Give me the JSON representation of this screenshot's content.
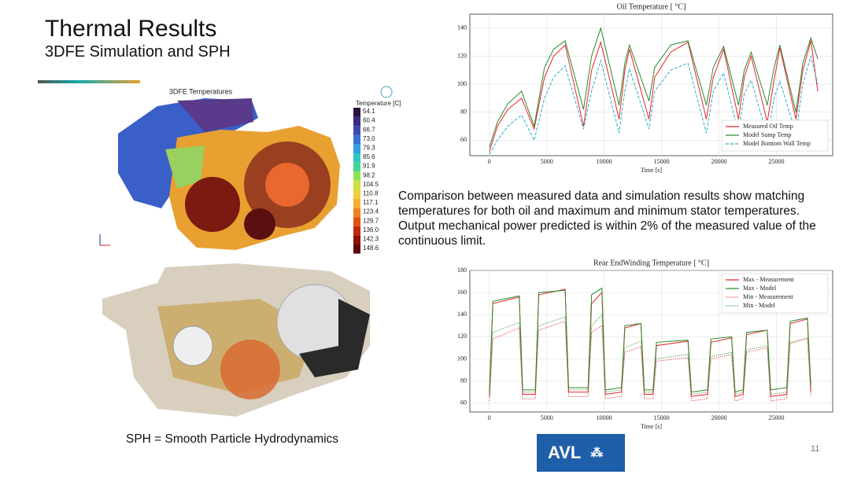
{
  "header": {
    "title": "Thermal Results",
    "subtitle": "3DFE Simulation and SPH"
  },
  "fe_panel": {
    "title": "3DFE Temperatures",
    "legend_title": "Temperature [C]",
    "legend_ticks": [
      "54.1",
      "60.4",
      "66.7",
      "73.0",
      "79.3",
      "85.6",
      "91.9",
      "98.2",
      "104.5",
      "110.8",
      "117.1",
      "123.4",
      "129.7",
      "136.0",
      "142.3",
      "148.6"
    ],
    "colors": [
      "#2a1040",
      "#3a2a80",
      "#3a4ab0",
      "#3a70d0",
      "#30a0e0",
      "#30c8c0",
      "#40d890",
      "#90e050",
      "#d0e040",
      "#f0d040",
      "#f8b030",
      "#f08020",
      "#e05010",
      "#c02808",
      "#901008",
      "#600808"
    ]
  },
  "description": "Comparison between measured data and simulation results show matching temperatures for both oil and maximum and minimum stator temperatures. Output mechanical power predicted is within 2% of the measured value of the continuous limit.",
  "sph_caption": "SPH = Smooth Particle Hydrodynamics",
  "logo": "AVL",
  "page_number": "11",
  "chart_data": [
    {
      "type": "line",
      "title": "Oil Temperature [ °C]",
      "x_label": "Time [s]",
      "x": [
        0,
        700,
        1600,
        2800,
        3900,
        4800,
        5600,
        6600,
        8200,
        8900,
        9700,
        11300,
        11800,
        12200,
        13900,
        14400,
        15800,
        17300,
        18900,
        19500,
        20400,
        21700,
        22200,
        22800,
        24200,
        24800,
        25300,
        26700,
        27300,
        28000,
        28600
      ],
      "series": [
        {
          "name": "Measured Oil Temp",
          "color": "#e8242c",
          "style": "solid",
          "values": [
            52,
            70,
            82,
            90,
            68,
            105,
            120,
            128,
            70,
            110,
            130,
            75,
            110,
            125,
            75,
            105,
            123,
            130,
            75,
            105,
            125,
            75,
            105,
            120,
            73,
            103,
            126,
            75,
            110,
            131,
            95
          ]
        },
        {
          "name": "Model Sump Temp",
          "color": "#2a8a2a",
          "style": "solid",
          "values": [
            55,
            73,
            86,
            95,
            70,
            112,
            125,
            131,
            82,
            120,
            140,
            85,
            115,
            128,
            88,
            112,
            128,
            131,
            85,
            112,
            127,
            85,
            110,
            123,
            85,
            112,
            128,
            80,
            115,
            133,
            118
          ]
        },
        {
          "name": "Model Botttom Wall Temp",
          "color": "#2ab0c8",
          "style": "dashed",
          "values": [
            50,
            60,
            70,
            78,
            60,
            90,
            105,
            113,
            68,
            95,
            117,
            65,
            95,
            111,
            68,
            95,
            110,
            115,
            65,
            95,
            108,
            65,
            93,
            103,
            63,
            90,
            102,
            65,
            100,
            120,
            100
          ]
        }
      ],
      "xlim": [
        -1700,
        29900
      ],
      "xticks": [
        0,
        5000,
        10000,
        15000,
        20000,
        25000
      ],
      "ylim": [
        49,
        150
      ],
      "yticks": [
        60,
        80,
        100,
        120,
        140
      ],
      "grid": true,
      "legend": "lower right"
    },
    {
      "type": "line",
      "title": "Rear EndWinding Temperature [ °C]",
      "x_label": "Time [s]",
      "x": [
        0,
        300,
        2600,
        2900,
        4000,
        4300,
        6600,
        6900,
        8600,
        8900,
        9800,
        10100,
        11500,
        11800,
        13200,
        13500,
        14250,
        14550,
        17300,
        17600,
        19000,
        19300,
        21100,
        21400,
        22100,
        22400,
        24200,
        24500,
        25900,
        26200,
        27700,
        28000
      ],
      "series": [
        {
          "name": "Max - Measurement",
          "color": "#e8242c",
          "style": "solid",
          "values": [
            66,
            150,
            156,
            68,
            68,
            158,
            163,
            70,
            70,
            150,
            160,
            68,
            70,
            128,
            132,
            68,
            68,
            112,
            116,
            66,
            68,
            115,
            119,
            66,
            68,
            122,
            126,
            66,
            68,
            132,
            136,
            70
          ]
        },
        {
          "name": "Max - Model",
          "color": "#2a8a2a",
          "style": "solid",
          "values": [
            70,
            152,
            157,
            72,
            72,
            160,
            162,
            74,
            74,
            158,
            164,
            72,
            74,
            130,
            132,
            72,
            72,
            115,
            117,
            70,
            72,
            118,
            120,
            70,
            72,
            124,
            126,
            72,
            74,
            134,
            137,
            76
          ]
        },
        {
          "name": "Min - Measurement",
          "color": "#e8242c",
          "style": "dotted",
          "values": [
            62,
            118,
            128,
            64,
            64,
            126,
            134,
            66,
            66,
            124,
            130,
            64,
            66,
            106,
            111,
            64,
            64,
            98,
            101,
            62,
            64,
            100,
            104,
            62,
            64,
            106,
            110,
            62,
            64,
            114,
            118,
            66
          ]
        },
        {
          "name": "Min - Model",
          "color": "#2a8a2a",
          "style": "dotted",
          "values": [
            68,
            124,
            133,
            70,
            70,
            130,
            138,
            72,
            72,
            130,
            140,
            70,
            72,
            110,
            116,
            70,
            70,
            100,
            104,
            68,
            70,
            102,
            106,
            68,
            70,
            108,
            112,
            68,
            70,
            115,
            119,
            72
          ]
        }
      ],
      "xlim": [
        -1700,
        29900
      ],
      "xticks": [
        0,
        5000,
        10000,
        15000,
        20000,
        25000
      ],
      "ylim": [
        52,
        180
      ],
      "yticks": [
        60,
        80,
        100,
        120,
        140,
        160,
        180
      ],
      "grid": true,
      "legend": "upper right"
    }
  ]
}
